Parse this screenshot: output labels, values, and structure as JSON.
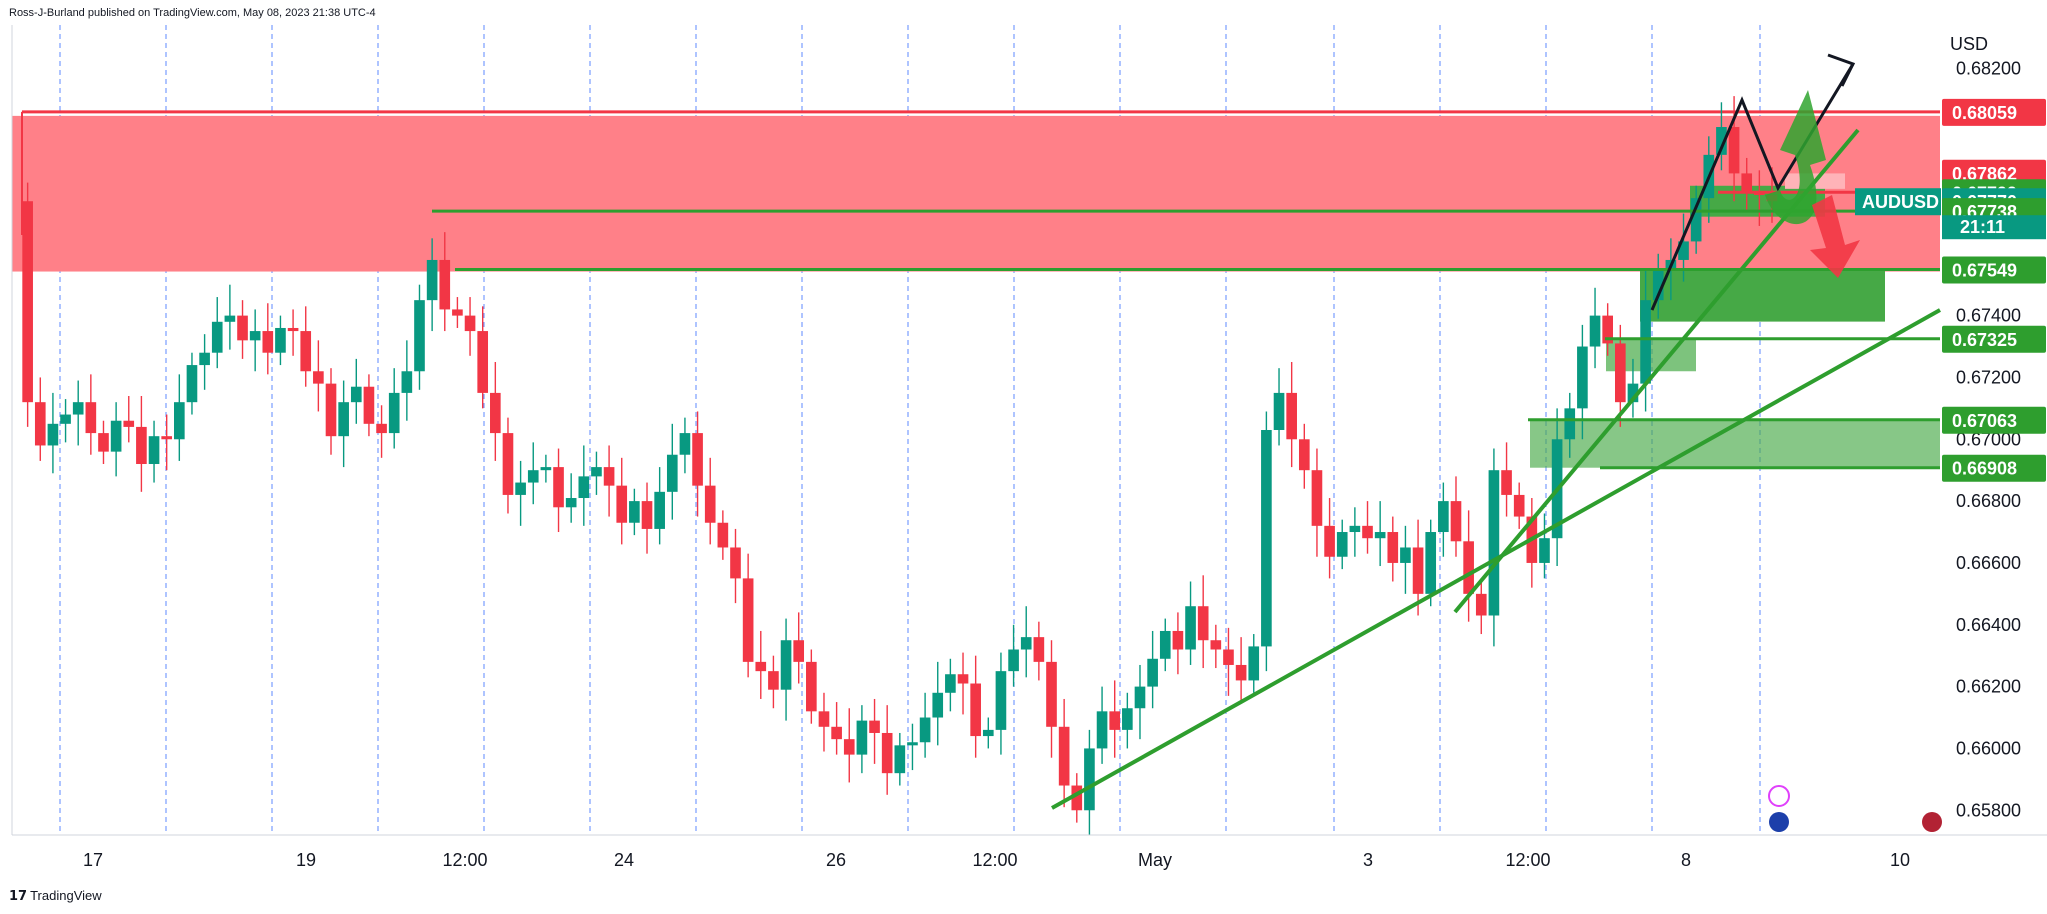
{
  "header": {
    "attribution": "Ross-J-Burland published on TradingView.com, May 08, 2023 21:38 UTC-4"
  },
  "footer": {
    "logo_text": "TradingView",
    "logo_mark": "17"
  },
  "colors": {
    "up": "#089981",
    "down": "#f23645",
    "supply_zone": "#ff8088",
    "resistance": "#f23645",
    "support": "#2e9e2e",
    "support_zone": "#46a946",
    "grid": "#2962ff",
    "analysis": "#131722"
  },
  "chart_data": {
    "type": "candlestick",
    "symbol": "AUDUSD",
    "currency": "USD",
    "countdown": "21:11",
    "last_price": 0.6777,
    "y_axis": {
      "range": [
        0.6572,
        0.6834
      ],
      "ticks": [
        "0.68200",
        "0.67400",
        "0.67200",
        "0.67000",
        "0.66800",
        "0.66600",
        "0.66400",
        "0.66200",
        "0.66000",
        "0.65800"
      ]
    },
    "x_axis": {
      "ticks": [
        "17",
        "19",
        "12:00",
        "24",
        "26",
        "12:00",
        "May",
        "3",
        "12:00",
        "8",
        "10"
      ]
    },
    "price_tags": [
      {
        "label": "0.68059",
        "value": 0.68059,
        "color": "#f23645"
      },
      {
        "label": "0.67862",
        "value": 0.67862,
        "color": "#f23645"
      },
      {
        "label": "0.67799",
        "value": 0.67799,
        "color": "#2e9e2e"
      },
      {
        "label": "0.67770",
        "value": 0.6777,
        "color": "#089981"
      },
      {
        "label": "0.67738",
        "value": 0.67738,
        "color": "#2e9e2e"
      },
      {
        "label": "0.67549",
        "value": 0.67549,
        "color": "#2e9e2e"
      },
      {
        "label": "0.67325",
        "value": 0.67325,
        "color": "#2e9e2e"
      },
      {
        "label": "0.67063",
        "value": 0.67063,
        "color": "#2e9e2e"
      },
      {
        "label": "0.66908",
        "value": 0.66908,
        "color": "#2e9e2e"
      }
    ],
    "series": [
      {
        "name": "AUDUSD",
        "approx_close_path": [
          0.6777,
          0.6712,
          0.6698,
          0.6705,
          0.6708,
          0.6712,
          0.6702,
          0.6696,
          0.6706,
          0.6704,
          0.6692,
          0.6701,
          0.67,
          0.6712,
          0.6724,
          0.6728,
          0.6738,
          0.674,
          0.6732,
          0.6735,
          0.6728,
          0.6736,
          0.6735,
          0.6722,
          0.6718,
          0.6701,
          0.6712,
          0.6717,
          0.6705,
          0.6702,
          0.6715,
          0.6722,
          0.6745,
          0.6758,
          0.6742,
          0.674,
          0.6735,
          0.6715,
          0.6702,
          0.6682,
          0.6686,
          0.669,
          0.6691,
          0.6678,
          0.6681,
          0.6688,
          0.6691,
          0.6685,
          0.6673,
          0.668,
          0.6671,
          0.6683,
          0.6695,
          0.6702,
          0.6685,
          0.6673,
          0.6665,
          0.6655,
          0.6628,
          0.6625,
          0.6619,
          0.6635,
          0.6628,
          0.6612,
          0.6607,
          0.6603,
          0.6598,
          0.6609,
          0.6605,
          0.6592,
          0.6601,
          0.6602,
          0.661,
          0.6618,
          0.6624,
          0.6621,
          0.6604,
          0.6606,
          0.6625,
          0.6632,
          0.6636,
          0.6628,
          0.6607,
          0.6588,
          0.658,
          0.66,
          0.6612,
          0.6606,
          0.6613,
          0.662,
          0.6629,
          0.6638,
          0.6632,
          0.6646,
          0.6635,
          0.6632,
          0.6627,
          0.6622,
          0.6633,
          0.6703,
          0.6715,
          0.67,
          0.669,
          0.6672,
          0.6662,
          0.667,
          0.6672,
          0.6668,
          0.667,
          0.666,
          0.6665,
          0.665,
          0.667,
          0.668,
          0.6667,
          0.665,
          0.6643,
          0.669,
          0.6682,
          0.6675,
          0.666,
          0.6668,
          0.67,
          0.671,
          0.673,
          0.674,
          0.6731,
          0.6712,
          0.6718,
          0.6745,
          0.6755,
          0.6758,
          0.6764,
          0.6778,
          0.6792,
          0.6801,
          0.6786,
          0.678,
          0.6779,
          0.6777
        ]
      }
    ],
    "annotations": {
      "supply_zone": {
        "from": 0.67549,
        "to": 0.68059
      },
      "support_zones": [
        {
          "from": 0.674,
          "to": 0.67549
        },
        {
          "from": 0.6722,
          "to": 0.67325
        },
        {
          "from": 0.66908,
          "to": 0.67063
        }
      ]
    }
  }
}
